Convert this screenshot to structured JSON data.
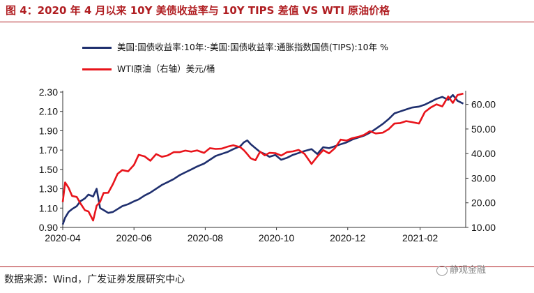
{
  "title": "图 4：2020 年 4 月以来 10Y 美债收益率与 10Y TIPS 差值  VS WTI 原油价格",
  "source": "数据来源：Wind，广发证券发展研究中心",
  "watermark": "静观金融",
  "chart_data": {
    "type": "line",
    "legend": [
      {
        "name": "美国:国债收益率:10年:-美国:国债收益率:通胀指数国债(TIPS):10年 %",
        "color": "#1f2f6e"
      },
      {
        "name": "WTI原油（右轴）美元/桶",
        "color": "#e8141b"
      }
    ],
    "x_ticks": [
      "2020-04",
      "2020-06",
      "2020-08",
      "2020-10",
      "2020-12",
      "2021-02"
    ],
    "x_range": [
      "2020-04-01",
      "2021-03-12"
    ],
    "y_left": {
      "min": 0.9,
      "max": 2.3,
      "ticks": [
        "0.90",
        "1.10",
        "1.30",
        "1.50",
        "1.70",
        "1.90",
        "2.10",
        "2.30"
      ]
    },
    "y_right": {
      "min": 10,
      "max": 65,
      "ticks": [
        "10.00",
        "20.00",
        "30.00",
        "40.00",
        "50.00",
        "60.00"
      ]
    },
    "series": [
      {
        "name": "美国:国债收益率:10年:-美国:国债收益率:通胀指数国债(TIPS):10年 %",
        "axis": "left",
        "color": "#1f2f6e",
        "points": [
          [
            "2020-04-01",
            0.93
          ],
          [
            "2020-04-03",
            1.0
          ],
          [
            "2020-04-06",
            1.06
          ],
          [
            "2020-04-09",
            1.09
          ],
          [
            "2020-04-13",
            1.12
          ],
          [
            "2020-04-16",
            1.17
          ],
          [
            "2020-04-20",
            1.2
          ],
          [
            "2020-04-23",
            1.24
          ],
          [
            "2020-04-27",
            1.22
          ],
          [
            "2020-04-30",
            1.3
          ],
          [
            "2020-05-03",
            1.1
          ],
          [
            "2020-05-06",
            1.08
          ],
          [
            "2020-05-10",
            1.05
          ],
          [
            "2020-05-14",
            1.06
          ],
          [
            "2020-05-18",
            1.09
          ],
          [
            "2020-05-22",
            1.12
          ],
          [
            "2020-05-27",
            1.14
          ],
          [
            "2020-06-01",
            1.17
          ],
          [
            "2020-06-05",
            1.19
          ],
          [
            "2020-06-10",
            1.23
          ],
          [
            "2020-06-15",
            1.26
          ],
          [
            "2020-06-20",
            1.3
          ],
          [
            "2020-06-25",
            1.34
          ],
          [
            "2020-06-30",
            1.37
          ],
          [
            "2020-07-05",
            1.4
          ],
          [
            "2020-07-10",
            1.44
          ],
          [
            "2020-07-15",
            1.47
          ],
          [
            "2020-07-20",
            1.5
          ],
          [
            "2020-07-25",
            1.53
          ],
          [
            "2020-07-31",
            1.56
          ],
          [
            "2020-08-05",
            1.6
          ],
          [
            "2020-08-10",
            1.64
          ],
          [
            "2020-08-15",
            1.66
          ],
          [
            "2020-08-20",
            1.68
          ],
          [
            "2020-08-25",
            1.71
          ],
          [
            "2020-08-31",
            1.74
          ],
          [
            "2020-09-03",
            1.78
          ],
          [
            "2020-09-06",
            1.8
          ],
          [
            "2020-09-09",
            1.76
          ],
          [
            "2020-09-13",
            1.72
          ],
          [
            "2020-09-17",
            1.68
          ],
          [
            "2020-09-21",
            1.66
          ],
          [
            "2020-09-25",
            1.63
          ],
          [
            "2020-09-30",
            1.65
          ],
          [
            "2020-10-05",
            1.6
          ],
          [
            "2020-10-10",
            1.62
          ],
          [
            "2020-10-15",
            1.65
          ],
          [
            "2020-10-20",
            1.67
          ],
          [
            "2020-10-25",
            1.69
          ],
          [
            "2020-10-31",
            1.71
          ],
          [
            "2020-11-05",
            1.66
          ],
          [
            "2020-11-10",
            1.73
          ],
          [
            "2020-11-15",
            1.72
          ],
          [
            "2020-11-20",
            1.74
          ],
          [
            "2020-11-25",
            1.76
          ],
          [
            "2020-11-30",
            1.78
          ],
          [
            "2020-12-05",
            1.81
          ],
          [
            "2020-12-10",
            1.83
          ],
          [
            "2020-12-15",
            1.85
          ],
          [
            "2020-12-20",
            1.88
          ],
          [
            "2020-12-25",
            1.92
          ],
          [
            "2020-12-31",
            1.97
          ],
          [
            "2021-01-05",
            2.02
          ],
          [
            "2021-01-10",
            2.08
          ],
          [
            "2021-01-15",
            2.1
          ],
          [
            "2021-01-20",
            2.12
          ],
          [
            "2021-01-25",
            2.14
          ],
          [
            "2021-01-31",
            2.15
          ],
          [
            "2021-02-05",
            2.17
          ],
          [
            "2021-02-10",
            2.2
          ],
          [
            "2021-02-15",
            2.23
          ],
          [
            "2021-02-20",
            2.25
          ],
          [
            "2021-02-25",
            2.22
          ],
          [
            "2021-03-01",
            2.27
          ],
          [
            "2021-03-05",
            2.21
          ],
          [
            "2021-03-10",
            2.18
          ]
        ]
      },
      {
        "name": "WTI原油（右轴）美元/桶",
        "axis": "right",
        "color": "#e8141b",
        "points": [
          [
            "2020-04-01",
            20.3
          ],
          [
            "2020-04-03",
            28.3
          ],
          [
            "2020-04-06",
            26.1
          ],
          [
            "2020-04-09",
            22.8
          ],
          [
            "2020-04-13",
            22.4
          ],
          [
            "2020-04-16",
            19.9
          ],
          [
            "2020-04-20",
            17.0
          ],
          [
            "2020-04-23",
            16.5
          ],
          [
            "2020-04-27",
            12.8
          ],
          [
            "2020-04-30",
            18.8
          ],
          [
            "2020-05-03",
            20.4
          ],
          [
            "2020-05-06",
            24.0
          ],
          [
            "2020-05-10",
            24.1
          ],
          [
            "2020-05-14",
            27.6
          ],
          [
            "2020-05-18",
            31.8
          ],
          [
            "2020-05-22",
            33.3
          ],
          [
            "2020-05-27",
            32.8
          ],
          [
            "2020-06-01",
            35.4
          ],
          [
            "2020-06-05",
            39.5
          ],
          [
            "2020-06-10",
            38.9
          ],
          [
            "2020-06-15",
            37.1
          ],
          [
            "2020-06-20",
            39.8
          ],
          [
            "2020-06-25",
            38.7
          ],
          [
            "2020-06-30",
            39.3
          ],
          [
            "2020-07-05",
            40.6
          ],
          [
            "2020-07-10",
            40.6
          ],
          [
            "2020-07-15",
            41.2
          ],
          [
            "2020-07-20",
            40.8
          ],
          [
            "2020-07-25",
            41.3
          ],
          [
            "2020-07-31",
            40.3
          ],
          [
            "2020-08-05",
            42.2
          ],
          [
            "2020-08-10",
            41.9
          ],
          [
            "2020-08-15",
            42.0
          ],
          [
            "2020-08-20",
            42.8
          ],
          [
            "2020-08-25",
            43.4
          ],
          [
            "2020-08-31",
            42.6
          ],
          [
            "2020-09-03",
            41.4
          ],
          [
            "2020-09-06",
            39.8
          ],
          [
            "2020-09-09",
            38.1
          ],
          [
            "2020-09-13",
            37.3
          ],
          [
            "2020-09-17",
            40.8
          ],
          [
            "2020-09-21",
            39.3
          ],
          [
            "2020-09-25",
            40.3
          ],
          [
            "2020-09-30",
            40.2
          ],
          [
            "2020-10-05",
            39.2
          ],
          [
            "2020-10-10",
            40.6
          ],
          [
            "2020-10-15",
            40.9
          ],
          [
            "2020-10-20",
            41.5
          ],
          [
            "2020-10-25",
            39.9
          ],
          [
            "2020-10-31",
            35.8
          ],
          [
            "2020-11-05",
            38.8
          ],
          [
            "2020-11-10",
            41.4
          ],
          [
            "2020-11-15",
            40.1
          ],
          [
            "2020-11-20",
            42.2
          ],
          [
            "2020-11-25",
            45.7
          ],
          [
            "2020-11-30",
            45.3
          ],
          [
            "2020-12-05",
            46.3
          ],
          [
            "2020-12-10",
            46.8
          ],
          [
            "2020-12-15",
            47.6
          ],
          [
            "2020-12-20",
            49.1
          ],
          [
            "2020-12-25",
            48.2
          ],
          [
            "2020-12-31",
            48.5
          ],
          [
            "2021-01-05",
            49.9
          ],
          [
            "2021-01-10",
            52.2
          ],
          [
            "2021-01-15",
            52.4
          ],
          [
            "2021-01-20",
            53.2
          ],
          [
            "2021-01-25",
            52.8
          ],
          [
            "2021-01-31",
            52.2
          ],
          [
            "2021-02-05",
            56.9
          ],
          [
            "2021-02-10",
            58.7
          ],
          [
            "2021-02-15",
            60.0
          ],
          [
            "2021-02-20",
            59.2
          ],
          [
            "2021-02-25",
            63.2
          ],
          [
            "2021-03-01",
            60.6
          ],
          [
            "2021-03-05",
            63.8
          ],
          [
            "2021-03-10",
            64.4
          ]
        ]
      }
    ]
  }
}
